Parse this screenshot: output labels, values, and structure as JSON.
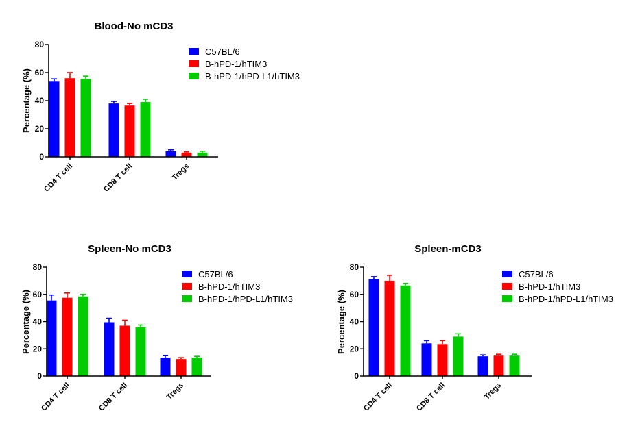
{
  "colors": {
    "C57BL/6": "#0000ff",
    "B-hPD-1/hTIM3": "#ff0000",
    "B-hPD-1/hPD-L1/hTIM3": "#00cc00"
  },
  "chart_data": [
    {
      "type": "bar",
      "title": "Blood-No mCD3",
      "xlabel": "",
      "ylabel": "Percentage (%)",
      "ylim": [
        0,
        80
      ],
      "yticks": [
        0,
        20,
        40,
        60,
        80
      ],
      "categories": [
        "CD4 T cell",
        "CD8 T cell",
        "Tregs"
      ],
      "legend_position": "top-right",
      "series": [
        {
          "name": "C57BL/6",
          "color": "#0000ff",
          "values": [
            54,
            38,
            4
          ],
          "errors": [
            1.5,
            1.5,
            1
          ]
        },
        {
          "name": "B-hPD-1/hTIM3",
          "color": "#ff0000",
          "values": [
            56,
            36.5,
            3
          ],
          "errors": [
            4,
            1.5,
            0.5
          ]
        },
        {
          "name": "B-hPD-1/hPD-L1/hTIM3",
          "color": "#00cc00",
          "values": [
            55.5,
            39,
            3
          ],
          "errors": [
            2,
            2,
            1
          ]
        }
      ]
    },
    {
      "type": "bar",
      "title": "Spleen-No mCD3",
      "xlabel": "",
      "ylabel": "Percentage (%)",
      "ylim": [
        0,
        80
      ],
      "yticks": [
        0,
        20,
        40,
        60,
        80
      ],
      "categories": [
        "CD4 T cell",
        "CD8 T cell",
        "Tregs"
      ],
      "legend_position": "top-right",
      "series": [
        {
          "name": "C57BL/6",
          "color": "#0000ff",
          "values": [
            55.5,
            39.5,
            13.5
          ],
          "errors": [
            4,
            3,
            1.5
          ]
        },
        {
          "name": "B-hPD-1/hTIM3",
          "color": "#ff0000",
          "values": [
            57.5,
            37,
            12.5
          ],
          "errors": [
            3.5,
            4,
            1
          ]
        },
        {
          "name": "B-hPD-1/hPD-L1/hTIM3",
          "color": "#00cc00",
          "values": [
            58.5,
            36,
            13.5
          ],
          "errors": [
            1.5,
            1.5,
            1
          ]
        }
      ]
    },
    {
      "type": "bar",
      "title": "Spleen-mCD3",
      "xlabel": "",
      "ylabel": "Percentage (%)",
      "ylim": [
        0,
        80
      ],
      "yticks": [
        0,
        20,
        40,
        60,
        80
      ],
      "categories": [
        "CD4 T cell",
        "CD8 T cell",
        "Tregs"
      ],
      "legend_position": "top-right",
      "series": [
        {
          "name": "C57BL/6",
          "color": "#0000ff",
          "values": [
            71,
            24,
            14.5
          ],
          "errors": [
            2,
            2,
            1
          ]
        },
        {
          "name": "B-hPD-1/hTIM3",
          "color": "#ff0000",
          "values": [
            70,
            23.5,
            15
          ],
          "errors": [
            4,
            2.5,
            1
          ]
        },
        {
          "name": "B-hPD-1/hPD-L1/hTIM3",
          "color": "#00cc00",
          "values": [
            66.5,
            29,
            15
          ],
          "errors": [
            1.5,
            2,
            1
          ]
        }
      ]
    }
  ]
}
